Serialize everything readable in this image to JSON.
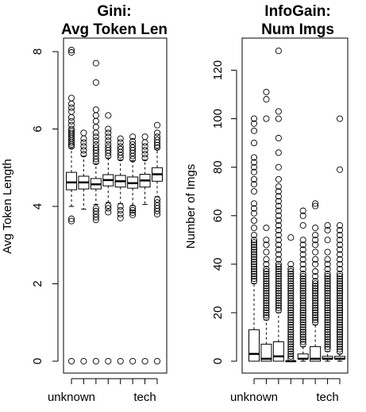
{
  "chart_data": [
    {
      "type": "box",
      "title": "Gini:\nAvg Token Len",
      "title_lines": [
        "Gini:",
        "Avg Token Len"
      ],
      "xlabel": "",
      "ylabel": "Avg Token Length",
      "ylim": [
        0,
        8
      ],
      "y_ticks": [
        0,
        2,
        4,
        6,
        8
      ],
      "x_tick_labels": [
        "unknown",
        "tech"
      ],
      "x_tick_label_positions": [
        1,
        7
      ],
      "box_count": 8,
      "boxes": [
        {
          "q1": 4.43,
          "median": 4.62,
          "q3": 4.88,
          "whisker_low": 4.0,
          "whisker_high": 5.5,
          "outliers": [
            0,
            3.62,
            3.68,
            5.55,
            5.6,
            5.65,
            5.7,
            5.75,
            5.8,
            5.85,
            5.9,
            5.95,
            6.0,
            6.1,
            6.2,
            6.3,
            6.45,
            6.55,
            6.65,
            6.8,
            7.98,
            8.04
          ]
        },
        {
          "q1": 4.45,
          "median": 4.62,
          "q3": 4.78,
          "whisker_low": 3.93,
          "whisker_high": 5.3,
          "outliers": [
            0,
            5.35,
            5.45,
            5.55,
            5.65,
            5.75,
            5.9
          ]
        },
        {
          "q1": 4.45,
          "median": 4.57,
          "q3": 4.72,
          "whisker_low": 4.05,
          "whisker_high": 5.1,
          "outliers": [
            0,
            3.65,
            3.72,
            3.8,
            3.88,
            3.95,
            5.15,
            5.22,
            5.3,
            5.38,
            5.45,
            5.52,
            5.6,
            5.7,
            5.8,
            5.9,
            6.05,
            6.2,
            6.35,
            6.5,
            7.2,
            7.7
          ]
        },
        {
          "q1": 4.53,
          "median": 4.68,
          "q3": 4.82,
          "whisker_low": 4.1,
          "whisker_high": 5.25,
          "outliers": [
            0,
            3.85,
            3.95,
            4.02,
            5.3,
            5.38,
            5.45,
            5.52,
            5.6,
            5.7,
            5.8,
            5.9,
            6.0,
            6.35
          ]
        },
        {
          "q1": 4.5,
          "median": 4.65,
          "q3": 4.8,
          "whisker_low": 4.07,
          "whisker_high": 5.2,
          "outliers": [
            0,
            3.7,
            3.8,
            3.9,
            4.0,
            5.25,
            5.32,
            5.4,
            5.48,
            5.55,
            5.65,
            5.75
          ]
        },
        {
          "q1": 4.47,
          "median": 4.6,
          "q3": 4.76,
          "whisker_low": 4.02,
          "whisker_high": 5.18,
          "outliers": [
            0,
            3.78,
            3.84,
            3.9,
            3.96,
            5.22,
            5.3,
            5.38,
            5.45,
            5.52,
            5.6,
            5.68,
            5.8
          ]
        },
        {
          "q1": 4.5,
          "median": 4.67,
          "q3": 4.83,
          "whisker_low": 4.05,
          "whisker_high": 5.2,
          "outliers": [
            0,
            5.25,
            5.35,
            5.45,
            5.55,
            5.65,
            5.8
          ]
        },
        {
          "q1": 4.65,
          "median": 4.83,
          "q3": 5.0,
          "whisker_low": 4.25,
          "whisker_high": 5.48,
          "outliers": [
            0,
            3.8,
            3.88,
            3.95,
            4.02,
            4.1,
            4.18,
            5.52,
            5.58,
            5.65,
            5.72,
            5.8,
            5.9,
            6.1
          ]
        }
      ]
    },
    {
      "type": "box",
      "title": "InfoGain:\nNum Imgs",
      "title_lines": [
        "InfoGain:",
        "Num Imgs"
      ],
      "xlabel": "",
      "ylabel": "Number of Imgs",
      "ylim": [
        0,
        128
      ],
      "y_ticks": [
        0,
        20,
        40,
        60,
        80,
        100,
        120
      ],
      "x_tick_labels": [
        "unknown",
        "tech"
      ],
      "x_tick_label_positions": [
        1,
        7
      ],
      "box_count": 8,
      "boxes": [
        {
          "q1": 0,
          "median": 3,
          "q3": 13,
          "whisker_low": 0,
          "whisker_high": 32,
          "outliers": [
            33,
            34,
            35,
            36,
            37,
            38,
            39,
            40,
            41,
            42,
            43,
            44,
            45,
            46,
            47,
            48,
            49,
            50,
            52,
            55,
            58,
            61,
            63,
            65,
            70,
            73,
            75,
            78,
            80,
            82,
            84,
            90,
            95,
            98,
            100
          ]
        },
        {
          "q1": 0,
          "median": 1,
          "q3": 7,
          "whisker_low": 0,
          "whisker_high": 17,
          "outliers": [
            18,
            19,
            20,
            21,
            22,
            23,
            24,
            25,
            26,
            27,
            28,
            29,
            30,
            31,
            32,
            33,
            34,
            35,
            36,
            37,
            38,
            40,
            42,
            45,
            48,
            50,
            55,
            100,
            108,
            111
          ]
        },
        {
          "q1": 0,
          "median": 2,
          "q3": 8,
          "whisker_low": 0,
          "whisker_high": 20,
          "outliers": [
            21,
            22,
            23,
            24,
            25,
            26,
            27,
            28,
            29,
            30,
            31,
            32,
            33,
            34,
            35,
            36,
            37,
            38,
            39,
            40,
            42,
            44,
            46,
            48,
            50,
            52,
            54,
            56,
            58,
            60,
            62,
            64,
            66,
            68,
            70,
            72,
            75,
            80,
            86,
            92,
            100,
            103,
            128
          ]
        },
        {
          "q1": 0,
          "median": 0,
          "q3": 0,
          "whisker_low": 0,
          "whisker_high": 0,
          "outliers": [
            1,
            2,
            3,
            4,
            5,
            6,
            7,
            8,
            9,
            10,
            11,
            12,
            13,
            14,
            15,
            16,
            17,
            18,
            19,
            20,
            21,
            22,
            23,
            24,
            25,
            26,
            27,
            28,
            29,
            30,
            31,
            32,
            33,
            34,
            35,
            36,
            37,
            38,
            40,
            51
          ]
        },
        {
          "q1": 1,
          "median": 1,
          "q3": 3,
          "whisker_low": 0,
          "whisker_high": 6,
          "outliers": [
            7,
            8,
            9,
            10,
            11,
            12,
            13,
            14,
            15,
            16,
            17,
            18,
            19,
            20,
            21,
            22,
            23,
            24,
            25,
            26,
            27,
            28,
            29,
            30,
            31,
            32,
            33,
            34,
            35,
            36,
            38,
            40,
            42,
            44,
            46,
            48,
            50,
            56,
            60,
            62
          ]
        },
        {
          "q1": 0,
          "median": 1,
          "q3": 6,
          "whisker_low": 0,
          "whisker_high": 15,
          "outliers": [
            16,
            17,
            18,
            19,
            20,
            21,
            22,
            23,
            24,
            25,
            26,
            27,
            28,
            29,
            30,
            31,
            32,
            33,
            35,
            37,
            40,
            42,
            45,
            48,
            50,
            52,
            55,
            64,
            65
          ]
        },
        {
          "q1": 1,
          "median": 1,
          "q3": 2,
          "whisker_low": 0,
          "whisker_high": 4,
          "outliers": [
            5,
            6,
            7,
            8,
            9,
            10,
            11,
            12,
            13,
            14,
            15,
            16,
            17,
            18,
            19,
            20,
            21,
            22,
            23,
            24,
            25,
            26,
            27,
            28,
            29,
            30,
            31,
            32,
            33,
            34,
            35,
            36,
            38,
            40,
            42,
            45,
            50,
            54,
            56
          ]
        },
        {
          "q1": 1,
          "median": 1,
          "q3": 2,
          "whisker_low": 0,
          "whisker_high": 3,
          "outliers": [
            4,
            5,
            6,
            7,
            8,
            9,
            10,
            11,
            12,
            13,
            14,
            15,
            16,
            17,
            18,
            19,
            20,
            21,
            22,
            23,
            24,
            25,
            26,
            27,
            28,
            29,
            30,
            31,
            32,
            33,
            34,
            35,
            36,
            38,
            40,
            42,
            44,
            46,
            48,
            50,
            52,
            54,
            56,
            79,
            100
          ]
        }
      ]
    }
  ]
}
